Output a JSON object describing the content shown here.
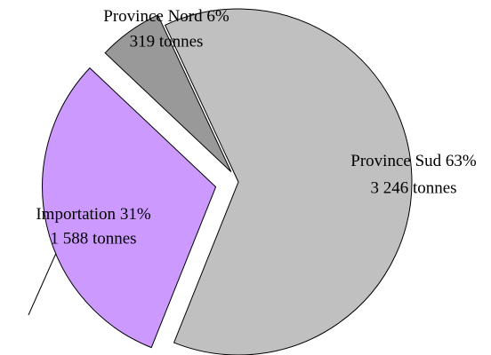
{
  "chart_data": {
    "type": "pie",
    "categories": [
      "Province Nord",
      "Province Sud",
      "Importation"
    ],
    "values": [
      6,
      63,
      31
    ],
    "value_labels": [
      "6%",
      "63%",
      "31%"
    ],
    "tonnes": [
      319,
      3246,
      1588
    ],
    "tonnes_labels": [
      "319 tonnes",
      "3 246 tonnes",
      "1 588 tonnes"
    ],
    "colors": [
      "#999999",
      "#c0c0c0",
      "#cc99ff"
    ]
  }
}
